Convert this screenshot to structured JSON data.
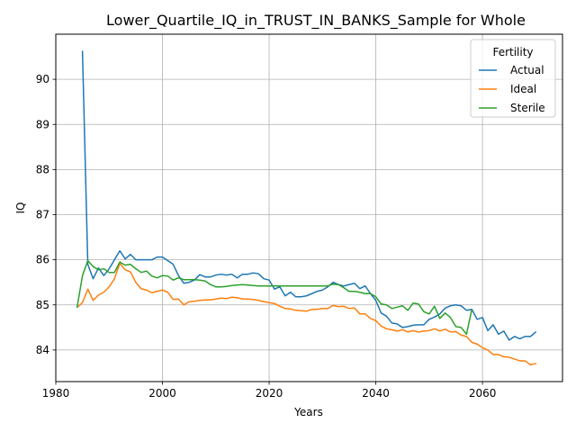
{
  "chart_data": {
    "type": "line",
    "title": "Lower_Quartile_IQ_in_TRUST_IN_BANKS_Sample for Whole",
    "xlabel": "Years",
    "ylabel": "IQ",
    "xlim": [
      1980,
      2075
    ],
    "ylim": [
      83.3,
      91.0
    ],
    "xticks": [
      1980,
      2000,
      2020,
      2040,
      2060
    ],
    "yticks": [
      84,
      85,
      86,
      87,
      88,
      89,
      90
    ],
    "grid": true,
    "legend": {
      "title": "Fertility",
      "placement": "top-right"
    },
    "series": [
      {
        "name": "Actual",
        "color": "#1f77b4",
        "points": [
          [
            1985,
            90.62
          ],
          [
            1986,
            85.9
          ],
          [
            1987,
            85.58
          ],
          [
            1988,
            85.82
          ],
          [
            1989,
            85.65
          ],
          [
            1990,
            85.8
          ],
          [
            1991,
            86.0
          ],
          [
            1992,
            86.2
          ],
          [
            1993,
            86.02
          ],
          [
            1994,
            86.12
          ],
          [
            1995,
            86.0
          ],
          [
            1996,
            86.0
          ],
          [
            1997,
            86.0
          ],
          [
            1998,
            86.0
          ],
          [
            1999,
            86.06
          ],
          [
            2000,
            86.06
          ],
          [
            2001,
            85.98
          ],
          [
            2002,
            85.9
          ],
          [
            2003,
            85.65
          ],
          [
            2004,
            85.48
          ],
          [
            2005,
            85.5
          ],
          [
            2006,
            85.55
          ],
          [
            2007,
            85.67
          ],
          [
            2008,
            85.62
          ],
          [
            2009,
            85.62
          ],
          [
            2010,
            85.66
          ],
          [
            2011,
            85.68
          ],
          [
            2012,
            85.66
          ],
          [
            2013,
            85.68
          ],
          [
            2014,
            85.6
          ],
          [
            2015,
            85.68
          ],
          [
            2016,
            85.68
          ],
          [
            2017,
            85.71
          ],
          [
            2018,
            85.69
          ],
          [
            2019,
            85.58
          ],
          [
            2020,
            85.55
          ],
          [
            2021,
            85.35
          ],
          [
            2022,
            85.4
          ],
          [
            2023,
            85.2
          ],
          [
            2024,
            85.28
          ],
          [
            2025,
            85.18
          ],
          [
            2026,
            85.18
          ],
          [
            2027,
            85.2
          ],
          [
            2028,
            85.25
          ],
          [
            2029,
            85.3
          ],
          [
            2030,
            85.33
          ],
          [
            2031,
            85.4
          ],
          [
            2032,
            85.5
          ],
          [
            2033,
            85.45
          ],
          [
            2034,
            85.42
          ],
          [
            2035,
            85.45
          ],
          [
            2036,
            85.48
          ],
          [
            2037,
            85.36
          ],
          [
            2038,
            85.42
          ],
          [
            2039,
            85.25
          ],
          [
            2040,
            85.1
          ],
          [
            2041,
            84.82
          ],
          [
            2042,
            84.75
          ],
          [
            2043,
            84.6
          ],
          [
            2044,
            84.58
          ],
          [
            2045,
            84.5
          ],
          [
            2046,
            84.52
          ],
          [
            2047,
            84.55
          ],
          [
            2048,
            84.56
          ],
          [
            2049,
            84.56
          ],
          [
            2050,
            84.68
          ],
          [
            2051,
            84.73
          ],
          [
            2052,
            84.8
          ],
          [
            2053,
            84.93
          ],
          [
            2054,
            84.98
          ],
          [
            2055,
            85.0
          ],
          [
            2056,
            84.98
          ],
          [
            2057,
            84.88
          ],
          [
            2058,
            84.9
          ],
          [
            2059,
            84.68
          ],
          [
            2060,
            84.72
          ],
          [
            2061,
            84.43
          ],
          [
            2062,
            84.56
          ],
          [
            2063,
            84.35
          ],
          [
            2064,
            84.42
          ],
          [
            2065,
            84.22
          ],
          [
            2066,
            84.3
          ],
          [
            2067,
            84.25
          ],
          [
            2068,
            84.3
          ],
          [
            2069,
            84.3
          ],
          [
            2070,
            84.4
          ]
        ]
      },
      {
        "name": "Ideal",
        "color": "#ff7f0e",
        "points": [
          [
            1984,
            84.95
          ],
          [
            1985,
            85.05
          ],
          [
            1986,
            85.35
          ],
          [
            1987,
            85.1
          ],
          [
            1988,
            85.22
          ],
          [
            1989,
            85.28
          ],
          [
            1990,
            85.4
          ],
          [
            1991,
            85.58
          ],
          [
            1992,
            85.92
          ],
          [
            1993,
            85.78
          ],
          [
            1994,
            85.73
          ],
          [
            1995,
            85.5
          ],
          [
            1996,
            85.36
          ],
          [
            1997,
            85.33
          ],
          [
            1998,
            85.27
          ],
          [
            1999,
            85.3
          ],
          [
            2000,
            85.33
          ],
          [
            2001,
            85.28
          ],
          [
            2002,
            85.12
          ],
          [
            2003,
            85.13
          ],
          [
            2004,
            85.0
          ],
          [
            2005,
            85.07
          ],
          [
            2006,
            85.08
          ],
          [
            2007,
            85.1
          ],
          [
            2008,
            85.11
          ],
          [
            2009,
            85.11
          ],
          [
            2010,
            85.13
          ],
          [
            2011,
            85.15
          ],
          [
            2012,
            85.14
          ],
          [
            2013,
            85.17
          ],
          [
            2014,
            85.16
          ],
          [
            2015,
            85.13
          ],
          [
            2016,
            85.13
          ],
          [
            2017,
            85.12
          ],
          [
            2018,
            85.1
          ],
          [
            2019,
            85.07
          ],
          [
            2020,
            85.05
          ],
          [
            2021,
            85.03
          ],
          [
            2022,
            84.97
          ],
          [
            2023,
            84.92
          ],
          [
            2024,
            84.91
          ],
          [
            2025,
            84.88
          ],
          [
            2026,
            84.87
          ],
          [
            2027,
            84.86
          ],
          [
            2028,
            84.9
          ],
          [
            2029,
            84.9
          ],
          [
            2030,
            84.92
          ],
          [
            2031,
            84.92
          ],
          [
            2032,
            84.99
          ],
          [
            2033,
            84.96
          ],
          [
            2034,
            84.97
          ],
          [
            2035,
            84.92
          ],
          [
            2036,
            84.93
          ],
          [
            2037,
            84.8
          ],
          [
            2038,
            84.8
          ],
          [
            2039,
            84.7
          ],
          [
            2040,
            84.65
          ],
          [
            2041,
            84.53
          ],
          [
            2042,
            84.47
          ],
          [
            2043,
            84.45
          ],
          [
            2044,
            84.42
          ],
          [
            2045,
            84.45
          ],
          [
            2046,
            84.4
          ],
          [
            2047,
            84.43
          ],
          [
            2048,
            84.4
          ],
          [
            2049,
            84.42
          ],
          [
            2050,
            84.43
          ],
          [
            2051,
            84.47
          ],
          [
            2052,
            84.42
          ],
          [
            2053,
            84.46
          ],
          [
            2054,
            84.4
          ],
          [
            2055,
            84.41
          ],
          [
            2056,
            84.33
          ],
          [
            2057,
            84.3
          ],
          [
            2058,
            84.17
          ],
          [
            2059,
            84.13
          ],
          [
            2060,
            84.05
          ],
          [
            2061,
            84.0
          ],
          [
            2062,
            83.9
          ],
          [
            2063,
            83.9
          ],
          [
            2064,
            83.85
          ],
          [
            2065,
            83.84
          ],
          [
            2066,
            83.8
          ],
          [
            2067,
            83.76
          ],
          [
            2068,
            83.76
          ],
          [
            2069,
            83.67
          ],
          [
            2070,
            83.7
          ]
        ]
      },
      {
        "name": "Sterile",
        "color": "#2ca02c",
        "points": [
          [
            1984,
            84.95
          ],
          [
            1985,
            85.65
          ],
          [
            1986,
            85.98
          ],
          [
            1987,
            85.85
          ],
          [
            1988,
            85.78
          ],
          [
            1989,
            85.8
          ],
          [
            1990,
            85.72
          ],
          [
            1991,
            85.72
          ],
          [
            1992,
            85.95
          ],
          [
            1993,
            85.88
          ],
          [
            1994,
            85.9
          ],
          [
            1995,
            85.8
          ],
          [
            1996,
            85.72
          ],
          [
            1997,
            85.75
          ],
          [
            1998,
            85.64
          ],
          [
            1999,
            85.6
          ],
          [
            2000,
            85.65
          ],
          [
            2001,
            85.64
          ],
          [
            2002,
            85.55
          ],
          [
            2003,
            85.6
          ],
          [
            2004,
            85.56
          ],
          [
            2005,
            85.56
          ],
          [
            2006,
            85.56
          ],
          [
            2007,
            85.55
          ],
          [
            2008,
            85.53
          ],
          [
            2009,
            85.45
          ],
          [
            2010,
            85.4
          ],
          [
            2011,
            85.4
          ],
          [
            2012,
            85.41
          ],
          [
            2013,
            85.43
          ],
          [
            2014,
            85.44
          ],
          [
            2015,
            85.45
          ],
          [
            2016,
            85.44
          ],
          [
            2017,
            85.43
          ],
          [
            2018,
            85.42
          ],
          [
            2019,
            85.42
          ],
          [
            2020,
            85.42
          ],
          [
            2021,
            85.42
          ],
          [
            2022,
            85.42
          ],
          [
            2023,
            85.42
          ],
          [
            2024,
            85.42
          ],
          [
            2025,
            85.42
          ],
          [
            2026,
            85.42
          ],
          [
            2027,
            85.42
          ],
          [
            2028,
            85.42
          ],
          [
            2029,
            85.42
          ],
          [
            2030,
            85.42
          ],
          [
            2031,
            85.42
          ],
          [
            2032,
            85.46
          ],
          [
            2033,
            85.45
          ],
          [
            2034,
            85.38
          ],
          [
            2035,
            85.3
          ],
          [
            2036,
            85.3
          ],
          [
            2037,
            85.28
          ],
          [
            2038,
            85.25
          ],
          [
            2039,
            85.25
          ],
          [
            2040,
            85.18
          ],
          [
            2041,
            85.02
          ],
          [
            2042,
            85.0
          ],
          [
            2043,
            84.92
          ],
          [
            2044,
            84.95
          ],
          [
            2045,
            84.98
          ],
          [
            2046,
            84.88
          ],
          [
            2047,
            85.04
          ],
          [
            2048,
            85.02
          ],
          [
            2049,
            84.85
          ],
          [
            2050,
            84.8
          ],
          [
            2051,
            84.97
          ],
          [
            2052,
            84.7
          ],
          [
            2053,
            84.82
          ],
          [
            2054,
            84.72
          ],
          [
            2055,
            84.52
          ],
          [
            2056,
            84.5
          ],
          [
            2057,
            84.35
          ],
          [
            2058,
            84.9
          ]
        ]
      }
    ]
  }
}
